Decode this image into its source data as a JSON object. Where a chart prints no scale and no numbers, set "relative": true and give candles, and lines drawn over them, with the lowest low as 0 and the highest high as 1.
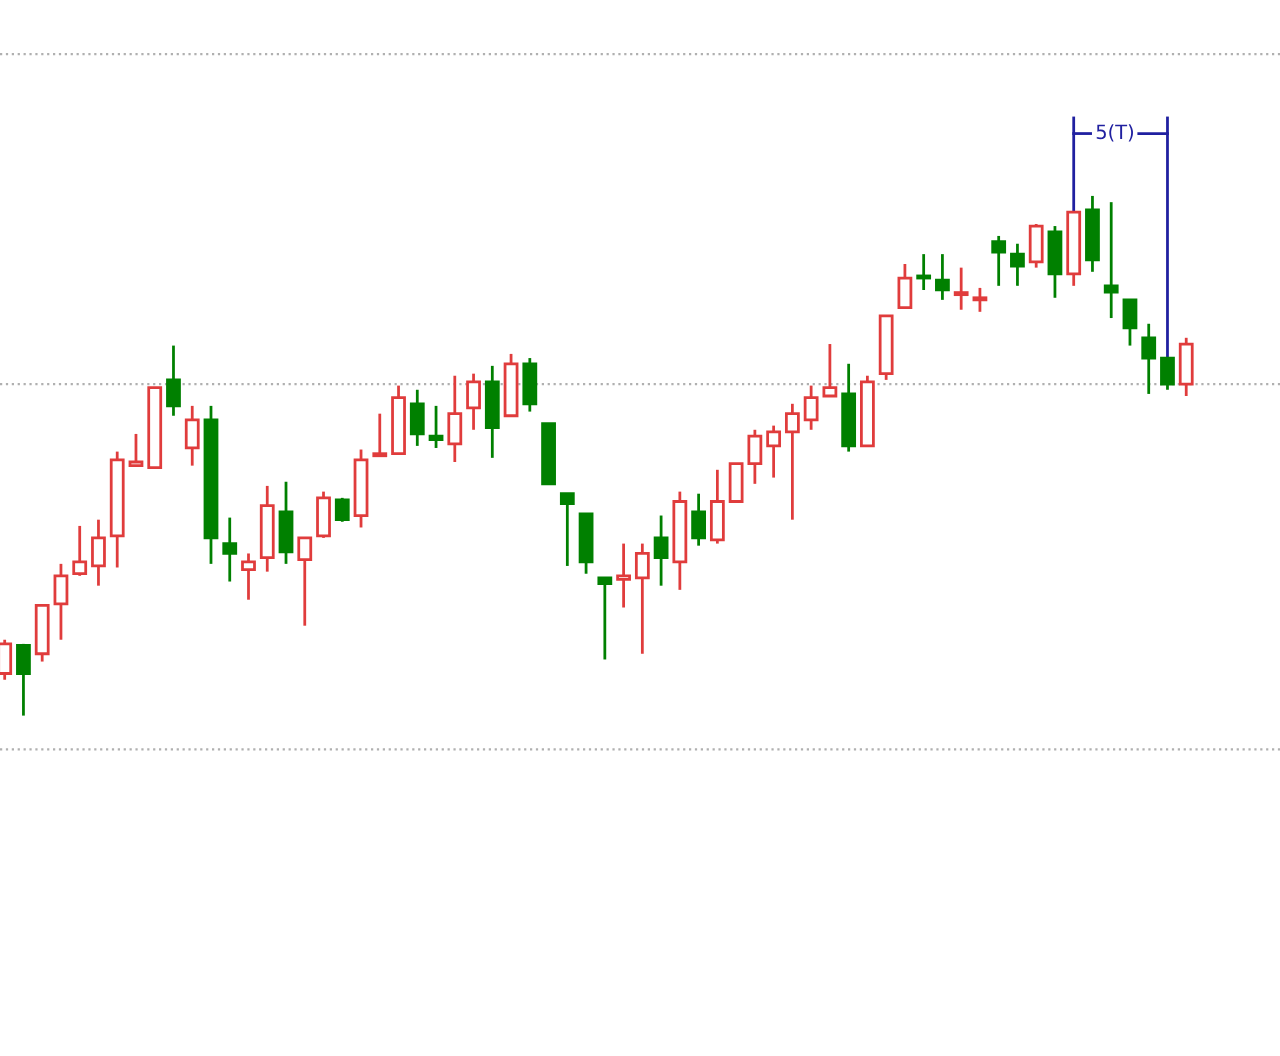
{
  "chart_data": {
    "type": "candlestick",
    "relative": true,
    "categories": [
      null,
      null,
      null,
      null,
      null,
      null,
      null,
      null,
      null,
      null,
      null,
      null,
      null,
      null,
      null,
      null,
      null,
      null,
      null,
      null,
      null,
      null,
      null,
      null,
      null,
      null,
      null,
      null,
      null,
      null,
      null,
      null,
      null,
      null,
      null,
      null,
      null,
      null,
      null,
      null,
      null,
      null,
      null,
      null,
      null,
      null,
      null,
      null,
      null,
      null,
      null,
      null,
      null,
      null,
      null,
      null,
      null,
      null,
      null,
      null,
      null,
      null,
      null,
      null
    ],
    "ohlc": [
      [
        0.081,
        0.146,
        0.069,
        0.138
      ],
      [
        0.135,
        0.138,
        0,
        0.081
      ],
      [
        0.119,
        0.212,
        0.104,
        0.212
      ],
      [
        0.215,
        0.292,
        0.146,
        0.269
      ],
      [
        0.273,
        0.365,
        0.269,
        0.296
      ],
      [
        0.288,
        0.377,
        0.25,
        0.342
      ],
      [
        0.346,
        0.508,
        0.285,
        0.492
      ],
      [
        0.481,
        0.542,
        0.481,
        0.488
      ],
      [
        0.477,
        0.631,
        0.477,
        0.631
      ],
      [
        0.646,
        0.712,
        0.577,
        0.596
      ],
      [
        0.515,
        0.596,
        0.481,
        0.569
      ],
      [
        0.569,
        0.596,
        0.292,
        0.342
      ],
      [
        0.331,
        0.381,
        0.258,
        0.312
      ],
      [
        0.281,
        0.312,
        0.223,
        0.296
      ],
      [
        0.304,
        0.442,
        0.277,
        0.404
      ],
      [
        0.392,
        0.45,
        0.292,
        0.315
      ],
      [
        0.3,
        0.342,
        0.173,
        0.342
      ],
      [
        0.346,
        0.431,
        0.342,
        0.419
      ],
      [
        0.415,
        0.419,
        0.373,
        0.377
      ],
      [
        0.385,
        0.512,
        0.362,
        0.492
      ],
      [
        0.5,
        0.581,
        0.5,
        0.504
      ],
      [
        0.504,
        0.635,
        0.504,
        0.612
      ],
      [
        0.6,
        0.627,
        0.519,
        0.542
      ],
      [
        0.538,
        0.596,
        0.515,
        0.531
      ],
      [
        0.523,
        0.654,
        0.488,
        0.581
      ],
      [
        0.592,
        0.658,
        0.55,
        0.642
      ],
      [
        0.642,
        0.673,
        0.496,
        0.554
      ],
      [
        0.577,
        0.696,
        0.577,
        0.677
      ],
      [
        0.677,
        0.688,
        0.585,
        0.6
      ],
      [
        0.562,
        0.562,
        0.446,
        0.446
      ],
      [
        0.427,
        0.427,
        0.288,
        0.408
      ],
      [
        0.388,
        0.388,
        0.273,
        0.296
      ],
      [
        0.265,
        0.265,
        0.108,
        0.254
      ],
      [
        0.262,
        0.331,
        0.208,
        0.269
      ],
      [
        0.265,
        0.331,
        0.119,
        0.312
      ],
      [
        0.342,
        0.385,
        0.25,
        0.304
      ],
      [
        0.296,
        0.431,
        0.242,
        0.412
      ],
      [
        0.392,
        0.427,
        0.327,
        0.342
      ],
      [
        0.338,
        0.473,
        0.331,
        0.412
      ],
      [
        0.412,
        0.485,
        0.412,
        0.485
      ],
      [
        0.485,
        0.55,
        0.446,
        0.538
      ],
      [
        0.519,
        0.558,
        0.458,
        0.546
      ],
      [
        0.546,
        0.6,
        0.377,
        0.581
      ],
      [
        0.569,
        0.635,
        0.55,
        0.612
      ],
      [
        0.615,
        0.715,
        0.615,
        0.631
      ],
      [
        0.619,
        0.677,
        0.508,
        0.519
      ],
      [
        0.519,
        0.654,
        0.519,
        0.642
      ],
      [
        0.658,
        0.769,
        0.646,
        0.769
      ],
      [
        0.785,
        0.869,
        0.785,
        0.842
      ],
      [
        0.846,
        0.888,
        0.819,
        0.842
      ],
      [
        0.838,
        0.888,
        0.8,
        0.819
      ],
      [
        0.81,
        0.862,
        0.781,
        0.812
      ],
      [
        0.8,
        0.823,
        0.777,
        0.804
      ],
      [
        0.912,
        0.923,
        0.827,
        0.892
      ],
      [
        0.888,
        0.908,
        0.827,
        0.865
      ],
      [
        0.873,
        0.946,
        0.862,
        0.942
      ],
      [
        0.931,
        0.942,
        0.804,
        0.85
      ],
      [
        0.85,
        0.969,
        0.827,
        0.969
      ],
      [
        0.973,
        1,
        0.854,
        0.877
      ],
      [
        0.827,
        0.988,
        0.765,
        0.815
      ],
      [
        0.8,
        0.8,
        0.712,
        0.746
      ],
      [
        0.727,
        0.754,
        0.619,
        0.688
      ],
      [
        0.688,
        0.688,
        0.627,
        0.638
      ],
      [
        0.638,
        0.727,
        0.615,
        0.715
      ]
    ],
    "colors": [
      "#e03c3c",
      "#008000",
      "#e03c3c",
      "#e03c3c",
      "#e03c3c",
      "#e03c3c",
      "#e03c3c",
      "#e03c3c",
      "#e03c3c",
      "#008000",
      "#e03c3c",
      "#008000",
      "#008000",
      "#e03c3c",
      "#e03c3c",
      "#008000",
      "#e03c3c",
      "#e03c3c",
      "#008000",
      "#e03c3c",
      "#e03c3c",
      "#e03c3c",
      "#008000",
      "#008000",
      "#e03c3c",
      "#e03c3c",
      "#008000",
      "#e03c3c",
      "#008000",
      "#008000",
      "#008000",
      "#008000",
      "#008000",
      "#e03c3c",
      "#e03c3c",
      "#008000",
      "#e03c3c",
      "#008000",
      "#e03c3c",
      "#e03c3c",
      "#e03c3c",
      "#e03c3c",
      "#e03c3c",
      "#e03c3c",
      "#e03c3c",
      "#008000",
      "#e03c3c",
      "#e03c3c",
      "#e03c3c",
      "#008000",
      "#008000",
      "#e03c3c",
      "#e03c3c",
      "#008000",
      "#008000",
      "#e03c3c",
      "#008000",
      "#e03c3c",
      "#008000",
      "#008000",
      "#008000",
      "#008000",
      "#008000",
      "#e03c3c"
    ],
    "ref_lines": [
      {
        "axis": "y",
        "value": 1.273,
        "color": "#b0b0b0",
        "line_style": "dotted"
      },
      {
        "axis": "y",
        "value": 0.638,
        "color": "#b0b0b0",
        "line_style": "dotted"
      },
      {
        "axis": "y",
        "value": -0.065,
        "color": "#b0b0b0",
        "line_style": "dotted"
      }
    ],
    "annotations": [
      "5(T)"
    ]
  }
}
